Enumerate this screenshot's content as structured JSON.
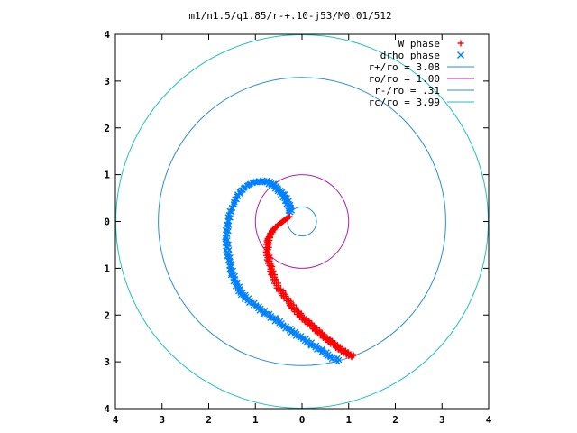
{
  "chart_data": {
    "type": "scatter",
    "title": "m1/n1.5/q1.85/r-+.10-j53/M0.01/512",
    "xlim": [
      -4,
      4
    ],
    "ylim": [
      -4,
      4
    ],
    "x_tick_values": [
      -4,
      -3,
      -2,
      -1,
      0,
      1,
      2,
      3,
      4
    ],
    "x_tick_labels": [
      "4",
      "3",
      "2",
      "1",
      "0",
      "1",
      "2",
      "3",
      "4"
    ],
    "y_tick_values": [
      4,
      3,
      2,
      1,
      0,
      -1,
      -2,
      -3,
      -4
    ],
    "y_tick_labels": [
      "4",
      "3",
      "2",
      "1",
      "0",
      "1",
      "2",
      "3",
      "4"
    ],
    "grid": false,
    "legend_position": "top-right",
    "series": [
      {
        "name": "W phase",
        "marker": "+",
        "color": "#ff0000",
        "points": [
          [
            1.1,
            -2.88
          ],
          [
            1.0,
            -2.84
          ],
          [
            0.9,
            -2.78
          ],
          [
            0.8,
            -2.71
          ],
          [
            0.7,
            -2.64
          ],
          [
            0.6,
            -2.56
          ],
          [
            0.5,
            -2.48
          ],
          [
            0.4,
            -2.4
          ],
          [
            0.3,
            -2.31
          ],
          [
            0.2,
            -2.22
          ],
          [
            0.1,
            -2.13
          ],
          [
            0.0,
            -2.04
          ],
          [
            -0.1,
            -1.94
          ],
          [
            -0.2,
            -1.82
          ],
          [
            -0.3,
            -1.7
          ],
          [
            -0.4,
            -1.56
          ],
          [
            -0.5,
            -1.42
          ],
          [
            -0.58,
            -1.26
          ],
          [
            -0.64,
            -1.1
          ],
          [
            -0.68,
            -0.95
          ],
          [
            -0.72,
            -0.8
          ],
          [
            -0.74,
            -0.65
          ],
          [
            -0.74,
            -0.5
          ],
          [
            -0.72,
            -0.38
          ],
          [
            -0.68,
            -0.28
          ],
          [
            -0.62,
            -0.18
          ],
          [
            -0.54,
            -0.1
          ],
          [
            -0.45,
            -0.03
          ],
          [
            -0.36,
            0.04
          ],
          [
            -0.28,
            0.1
          ]
        ]
      },
      {
        "name": "drho phase",
        "marker": "x",
        "color": "#0080ff",
        "points": [
          [
            0.8,
            -2.98
          ],
          [
            0.6,
            -2.88
          ],
          [
            0.4,
            -2.75
          ],
          [
            0.2,
            -2.62
          ],
          [
            0.0,
            -2.5
          ],
          [
            -0.2,
            -2.36
          ],
          [
            -0.4,
            -2.22
          ],
          [
            -0.6,
            -2.08
          ],
          [
            -0.8,
            -1.94
          ],
          [
            -1.0,
            -1.8
          ],
          [
            -1.2,
            -1.64
          ],
          [
            -1.32,
            -1.5
          ],
          [
            -1.42,
            -1.32
          ],
          [
            -1.5,
            -1.1
          ],
          [
            -1.56,
            -0.85
          ],
          [
            -1.6,
            -0.6
          ],
          [
            -1.62,
            -0.35
          ],
          [
            -1.6,
            -0.1
          ],
          [
            -1.55,
            0.15
          ],
          [
            -1.46,
            0.4
          ],
          [
            -1.35,
            0.6
          ],
          [
            -1.22,
            0.74
          ],
          [
            -1.06,
            0.83
          ],
          [
            -0.9,
            0.86
          ],
          [
            -0.75,
            0.85
          ],
          [
            -0.62,
            0.78
          ],
          [
            -0.5,
            0.68
          ],
          [
            -0.4,
            0.56
          ],
          [
            -0.32,
            0.44
          ],
          [
            -0.27,
            0.3
          ],
          [
            -0.25,
            0.2
          ]
        ]
      },
      {
        "name": "r+/ro = 3.08",
        "kind": "circle",
        "radius": 3.08,
        "color": "#2a8fd4"
      },
      {
        "name": "ro/ro = 1.00",
        "kind": "circle",
        "radius": 1.0,
        "color": "#b020b0"
      },
      {
        "name": "r-/ro = .31",
        "kind": "circle",
        "radius": 0.31,
        "color": "#2a8fd4"
      },
      {
        "name": "rc/ro = 3.99",
        "kind": "circle",
        "radius": 3.99,
        "color": "#20c0c0"
      }
    ]
  }
}
